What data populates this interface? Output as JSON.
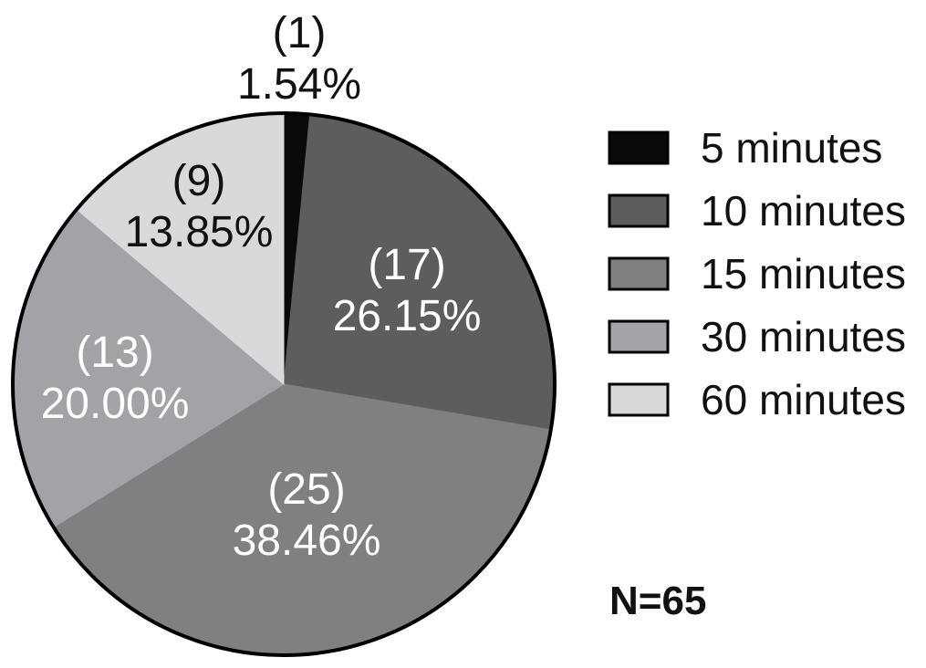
{
  "chart_data": {
    "type": "pie",
    "title": "",
    "slices": [
      {
        "label": "5 minutes",
        "count": 1,
        "count_text": "(1)",
        "percent": 1.54,
        "percent_text": "1.54%",
        "color": "#0a0a0a",
        "label_color": "#111111"
      },
      {
        "label": "10 minutes",
        "count": 17,
        "count_text": "(17)",
        "percent": 26.15,
        "percent_text": "26.15%",
        "color": "#5d5d5d",
        "label_color": "#ffffff"
      },
      {
        "label": "15 minutes",
        "count": 25,
        "count_text": "(25)",
        "percent": 38.46,
        "percent_text": "38.46%",
        "color": "#808080",
        "label_color": "#ffffff"
      },
      {
        "label": "30 minutes",
        "count": 13,
        "count_text": "(13)",
        "percent": 20.0,
        "percent_text": "20.00%",
        "color": "#a3a3a7",
        "label_color": "#ffffff"
      },
      {
        "label": "60 minutes",
        "count": 9,
        "count_text": "(9)",
        "percent": 13.85,
        "percent_text": "13.85%",
        "color": "#d9d9d9",
        "label_color": "#111111"
      }
    ],
    "start_angle": "12 o'clock",
    "direction": "clockwise",
    "legend_position": "right",
    "annotation": "N=65"
  }
}
